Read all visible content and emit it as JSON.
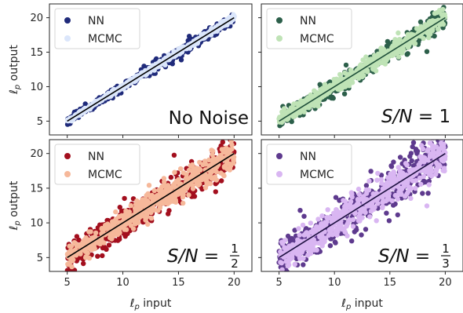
{
  "chart_data": [
    {
      "type": "scatter",
      "annotation": {
        "prefix": "No Noise",
        "italic_label": "",
        "eq": "",
        "frac_num": "",
        "frac_den": "",
        "plain": ""
      },
      "xlim": [
        3.4,
        21.6
      ],
      "ylim": [
        3.0,
        22.0
      ],
      "xticks": [
        5,
        10,
        15,
        20
      ],
      "yticks": [
        5,
        10,
        15,
        20
      ],
      "xlabel": "",
      "ylabel": "output",
      "legend_placement": "top-left",
      "line": {
        "x": [
          5,
          20
        ],
        "y": [
          5,
          20
        ],
        "color": "#000000"
      },
      "noise": 0.22,
      "series": [
        {
          "name": "NN",
          "color": "#1f2a7a",
          "spread": 0.28
        },
        {
          "name": "MCMC",
          "color": "#dbe6fb",
          "spread": 0.16
        }
      ]
    },
    {
      "type": "scatter",
      "annotation": {
        "prefix": "",
        "italic_label": "S/N",
        "eq": " = ",
        "frac_num": "",
        "frac_den": "",
        "plain": "1"
      },
      "xlim": [
        3.4,
        21.6
      ],
      "ylim": [
        3.0,
        22.0
      ],
      "xticks": [
        5,
        10,
        15,
        20
      ],
      "yticks": [
        5,
        10,
        15,
        20
      ],
      "xlabel": "",
      "ylabel": "",
      "legend_placement": "top-left",
      "line": {
        "x": [
          5,
          20
        ],
        "y": [
          5,
          20
        ],
        "color": "#1f4f3a"
      },
      "noise": 0.45,
      "series": [
        {
          "name": "NN",
          "color": "#2c5f4a",
          "spread": 0.55
        },
        {
          "name": "MCMC",
          "color": "#bfe3b6",
          "spread": 0.45
        }
      ]
    },
    {
      "type": "scatter",
      "annotation": {
        "prefix": "",
        "italic_label": "S/N",
        "eq": " = ",
        "frac_num": "1",
        "frac_den": "2",
        "plain": ""
      },
      "xlim": [
        3.4,
        21.6
      ],
      "ylim": [
        3.0,
        22.0
      ],
      "xticks": [
        5,
        10,
        15,
        20
      ],
      "yticks": [
        5,
        10,
        15,
        20
      ],
      "xlabel": "input",
      "ylabel": "output",
      "legend_placement": "top-left",
      "line": {
        "x": [
          5,
          20
        ],
        "y": [
          5,
          20
        ],
        "color": "#000000"
      },
      "noise": 0.8,
      "series": [
        {
          "name": "NN",
          "color": "#a30f1e",
          "spread": 0.95
        },
        {
          "name": "MCMC",
          "color": "#f6b89a",
          "spread": 0.75
        }
      ]
    },
    {
      "type": "scatter",
      "annotation": {
        "prefix": "",
        "italic_label": "S/N",
        "eq": " = ",
        "frac_num": "1",
        "frac_den": "3",
        "plain": ""
      },
      "xlim": [
        3.4,
        21.6
      ],
      "ylim": [
        3.0,
        22.0
      ],
      "xticks": [
        5,
        10,
        15,
        20
      ],
      "yticks": [
        5,
        10,
        15,
        20
      ],
      "xlabel": "input",
      "ylabel": "",
      "legend_placement": "top-left",
      "line": {
        "x": [
          5,
          20
        ],
        "y": [
          5,
          20
        ],
        "color": "#1c1040"
      },
      "noise": 1.1,
      "series": [
        {
          "name": "NN",
          "color": "#5e3a8e",
          "spread": 1.25
        },
        {
          "name": "MCMC",
          "color": "#d9b6f2",
          "spread": 1.0
        }
      ]
    }
  ]
}
